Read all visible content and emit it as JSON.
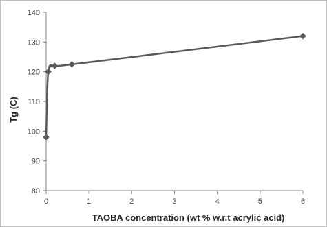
{
  "chart_data": {
    "type": "scatter",
    "title": "",
    "xlabel": "TAOBA concentration (wt % w.r.t acrylic acid)",
    "ylabel": "Tg (C)",
    "xlim": [
      0,
      6
    ],
    "ylim": [
      80,
      140
    ],
    "xticks": [
      "0",
      "1",
      "2",
      "3",
      "4",
      "5",
      "6"
    ],
    "yticks": [
      "80",
      "90",
      "100",
      "110",
      "120",
      "130",
      "140"
    ],
    "grid": false,
    "legend": "none",
    "line_style": "smoothed line with diamond markers",
    "series": [
      {
        "color": "#595959",
        "marker": "diamond",
        "points": [
          {
            "x": 0,
            "y": 98
          },
          {
            "x": 0.05,
            "y": 120
          },
          {
            "x": 0.2,
            "y": 122
          },
          {
            "x": 0.6,
            "y": 122.5
          },
          {
            "x": 6,
            "y": 132
          }
        ]
      }
    ]
  }
}
